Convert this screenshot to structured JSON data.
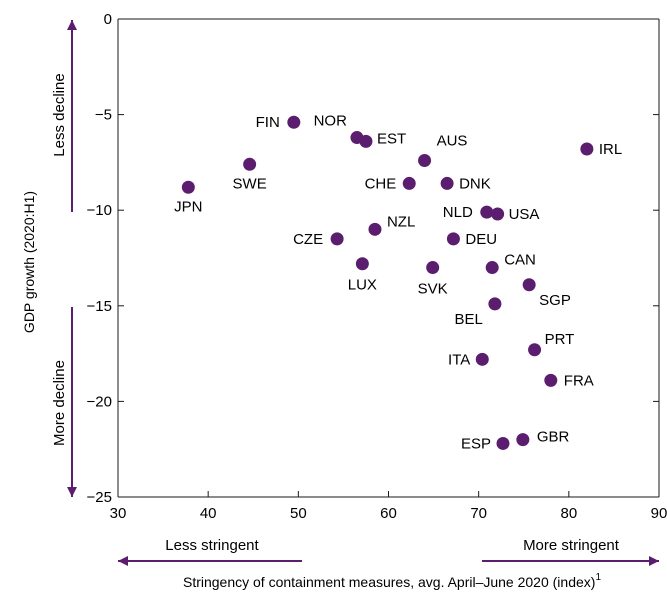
{
  "chart_data": {
    "type": "scatter",
    "title": "",
    "xlabel": "Stringency of containment measures, avg. April–June 2020 (index)",
    "xlabel_sup": "1",
    "ylabel": "GDP growth (2020:H1)",
    "xlim": [
      30,
      90
    ],
    "ylim": [
      -25,
      0
    ],
    "xticks": [
      30,
      40,
      50,
      60,
      70,
      80,
      90
    ],
    "yticks": [
      0,
      -5,
      -10,
      -15,
      -20,
      -25
    ],
    "grid": false,
    "point_color": "#5b1e6e",
    "arrow_color": "#5b1e6e",
    "annotations": {
      "less_decline": "Less decline",
      "more_decline": "More decline",
      "less_stringent": "Less stringent",
      "more_stringent": "More stringent"
    },
    "points": [
      {
        "label": "JPN",
        "x": 37.8,
        "y": -8.8
      },
      {
        "label": "SWE",
        "x": 44.6,
        "y": -7.6
      },
      {
        "label": "FIN",
        "x": 49.5,
        "y": -5.4
      },
      {
        "label": "NOR",
        "x": 56.5,
        "y": -6.2
      },
      {
        "label": "EST",
        "x": 57.5,
        "y": -6.4
      },
      {
        "label": "AUS",
        "x": 64.0,
        "y": -7.4
      },
      {
        "label": "IRL",
        "x": 82.0,
        "y": -6.8
      },
      {
        "label": "CHE",
        "x": 62.3,
        "y": -8.6
      },
      {
        "label": "DNK",
        "x": 66.5,
        "y": -8.6
      },
      {
        "label": "NLD",
        "x": 70.9,
        "y": -10.1
      },
      {
        "label": "USA",
        "x": 72.1,
        "y": -10.2
      },
      {
        "label": "CZE",
        "x": 54.3,
        "y": -11.5
      },
      {
        "label": "NZL",
        "x": 58.5,
        "y": -11.0
      },
      {
        "label": "DEU",
        "x": 67.2,
        "y": -11.5
      },
      {
        "label": "LUX",
        "x": 57.1,
        "y": -12.8
      },
      {
        "label": "SVK",
        "x": 64.9,
        "y": -13.0
      },
      {
        "label": "CAN",
        "x": 71.5,
        "y": -13.0
      },
      {
        "label": "SGP",
        "x": 75.6,
        "y": -13.9
      },
      {
        "label": "BEL",
        "x": 71.8,
        "y": -14.9
      },
      {
        "label": "PRT",
        "x": 76.2,
        "y": -17.3
      },
      {
        "label": "ITA",
        "x": 70.4,
        "y": -17.8
      },
      {
        "label": "FRA",
        "x": 78.0,
        "y": -18.9
      },
      {
        "label": "ESP",
        "x": 72.7,
        "y": -22.2
      },
      {
        "label": "GBR",
        "x": 74.9,
        "y": -22.0
      }
    ]
  }
}
